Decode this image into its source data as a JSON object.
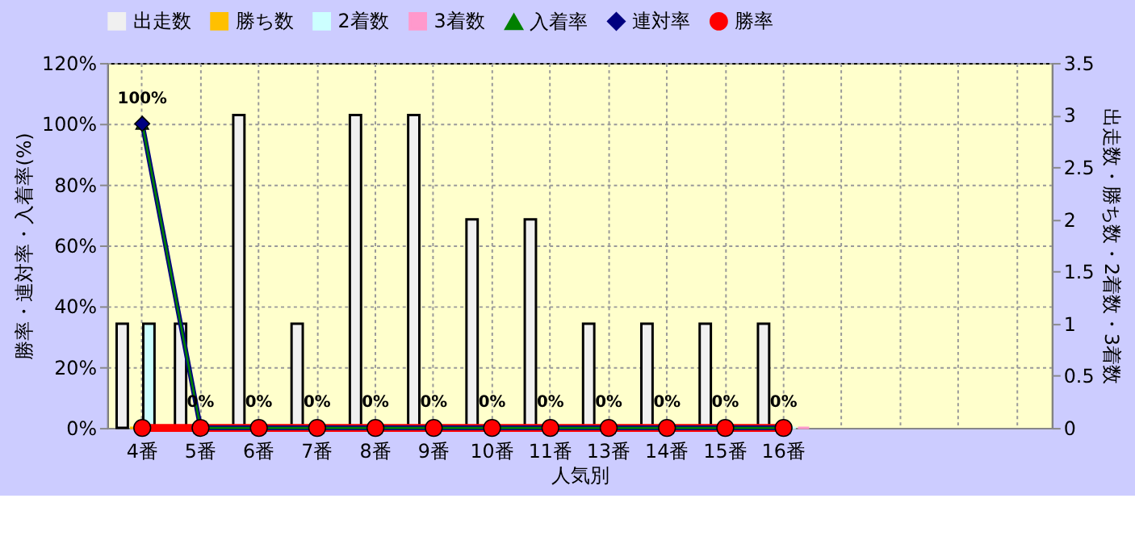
{
  "chart_data": {
    "type": "bar",
    "categories": [
      "4番",
      "5番",
      "6番",
      "7番",
      "8番",
      "9番",
      "10番",
      "11番",
      "13番",
      "14番",
      "15番",
      "16番",
      null,
      null,
      null,
      null
    ],
    "xlabel": "人気別",
    "ylabel": "勝率・連対率・入着率(%)",
    "y2label": "出走数・勝ち数・2着数・3着数",
    "ylim": [
      0,
      120
    ],
    "yticks": [
      {
        "value": 0,
        "label": "0%"
      },
      {
        "value": 20,
        "label": "20%"
      },
      {
        "value": 40,
        "label": "40%"
      },
      {
        "value": 60,
        "label": "60%"
      },
      {
        "value": 80,
        "label": "80%"
      },
      {
        "value": 100,
        "label": "100%"
      },
      {
        "value": 120,
        "label": "120%"
      }
    ],
    "y2lim": [
      0,
      3.5
    ],
    "y2ticks": [
      0,
      0.5,
      1,
      1.5,
      2,
      2.5,
      3,
      3.5
    ],
    "grid": true,
    "legend": "top",
    "series": [
      {
        "name": "出走数",
        "axis": "y2",
        "color": "#f0f0f0",
        "values": [
          1,
          1,
          3,
          1,
          3,
          3,
          2,
          2,
          1,
          1,
          1,
          1,
          null,
          null,
          null,
          null
        ]
      },
      {
        "name": "勝ち数",
        "axis": "y2",
        "color": "#ffc000",
        "values": [
          0,
          0,
          0,
          0,
          0,
          0,
          0,
          0,
          0,
          0,
          0,
          0,
          null,
          null,
          null,
          null
        ]
      },
      {
        "name": "2着数",
        "axis": "y2",
        "color": "#ccffff",
        "values": [
          1,
          0,
          0,
          0,
          0,
          0,
          0,
          0,
          0,
          0,
          0,
          0,
          null,
          null,
          null,
          null
        ]
      },
      {
        "name": "3着数",
        "axis": "y2",
        "color": "#ff99cc",
        "values": [
          0,
          0,
          0,
          0,
          0,
          0,
          0,
          0,
          0,
          0,
          0,
          0,
          null,
          null,
          null,
          null
        ]
      },
      {
        "name": "入着率",
        "type": "line",
        "color": "#008000",
        "marker": "triangle",
        "values": [
          100,
          0,
          0,
          0,
          0,
          0,
          0,
          0,
          0,
          0,
          0,
          0,
          null,
          null,
          null,
          null
        ],
        "value_labels": [
          "100%",
          "0%",
          "0%",
          "0%",
          "0%",
          "0%",
          "0%",
          "0%",
          "0%",
          "0%",
          "0%",
          "0%",
          null,
          null,
          null,
          null
        ]
      },
      {
        "name": "連対率",
        "type": "line",
        "color": "#000080",
        "marker": "diamond",
        "values": [
          100,
          0,
          0,
          0,
          0,
          0,
          0,
          0,
          0,
          0,
          0,
          0,
          null,
          null,
          null,
          null
        ]
      },
      {
        "name": "勝率",
        "type": "line",
        "color": "#ff0000",
        "marker": "circle",
        "values": [
          0,
          0,
          0,
          0,
          0,
          0,
          0,
          0,
          0,
          0,
          0,
          0,
          null,
          null,
          null,
          null
        ]
      }
    ]
  }
}
